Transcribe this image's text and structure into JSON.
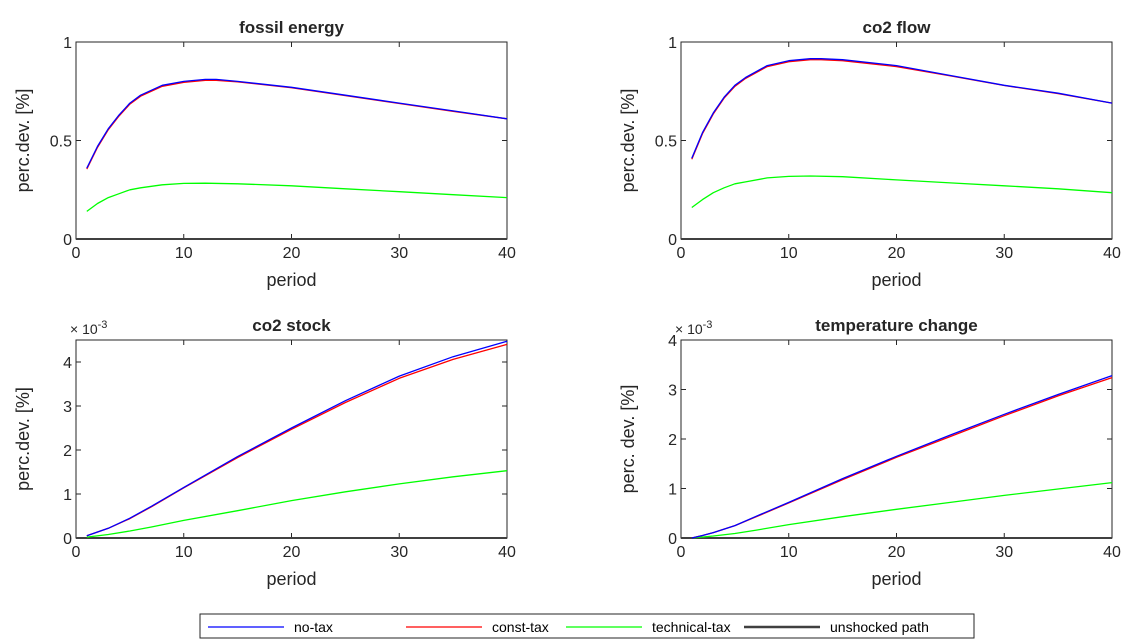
{
  "chart_data": [
    {
      "type": "line",
      "title": "fossil energy",
      "xlabel": "period",
      "ylabel": "perc.dev. [%]",
      "xlim": [
        0,
        40
      ],
      "ylim": [
        0,
        1
      ],
      "xticks": [
        "0",
        "10",
        "20",
        "30",
        "40"
      ],
      "yticks": [
        "0",
        "0.5",
        "1"
      ],
      "exponent": "",
      "grid": false,
      "series": [
        {
          "name": "no-tax",
          "color": "#0000ff",
          "x": [
            1,
            2,
            3,
            4,
            5,
            6,
            8,
            10,
            12,
            13,
            15,
            20,
            25,
            30,
            35,
            40
          ],
          "y": [
            0.36,
            0.47,
            0.56,
            0.63,
            0.69,
            0.73,
            0.78,
            0.8,
            0.81,
            0.81,
            0.8,
            0.77,
            0.73,
            0.69,
            0.65,
            0.61
          ]
        },
        {
          "name": "const-tax",
          "color": "#ff0000",
          "x": [
            1,
            2,
            3,
            4,
            5,
            6,
            8,
            10,
            12,
            13,
            15,
            20,
            25,
            30,
            35,
            40
          ],
          "y": [
            0.355,
            0.465,
            0.555,
            0.625,
            0.685,
            0.725,
            0.775,
            0.795,
            0.805,
            0.805,
            0.798,
            0.768,
            0.728,
            0.688,
            0.648,
            0.61
          ]
        },
        {
          "name": "technical-tax",
          "color": "#00ff00",
          "x": [
            1,
            2,
            3,
            4,
            5,
            6,
            8,
            10,
            12,
            15,
            20,
            25,
            30,
            35,
            40
          ],
          "y": [
            0.14,
            0.18,
            0.21,
            0.23,
            0.25,
            0.26,
            0.275,
            0.282,
            0.283,
            0.28,
            0.27,
            0.255,
            0.24,
            0.225,
            0.21
          ]
        },
        {
          "name": "unshocked path",
          "color": "#404040",
          "x": [
            0,
            40
          ],
          "y": [
            0,
            0
          ]
        }
      ]
    },
    {
      "type": "line",
      "title": "co2 flow",
      "xlabel": "period",
      "ylabel": "perc.dev. [%]",
      "xlim": [
        0,
        40
      ],
      "ylim": [
        0,
        1
      ],
      "xticks": [
        "0",
        "10",
        "20",
        "30",
        "40"
      ],
      "yticks": [
        "0",
        "0.5",
        "1"
      ],
      "exponent": "",
      "grid": false,
      "series": [
        {
          "name": "no-tax",
          "color": "#0000ff",
          "x": [
            1,
            2,
            3,
            4,
            5,
            6,
            8,
            10,
            12,
            13,
            15,
            20,
            25,
            30,
            35,
            40
          ],
          "y": [
            0.41,
            0.54,
            0.64,
            0.72,
            0.78,
            0.82,
            0.88,
            0.905,
            0.915,
            0.915,
            0.91,
            0.88,
            0.83,
            0.78,
            0.74,
            0.69
          ]
        },
        {
          "name": "const-tax",
          "color": "#ff0000",
          "x": [
            1,
            2,
            3,
            4,
            5,
            6,
            8,
            10,
            12,
            13,
            15,
            20,
            25,
            30,
            35,
            40
          ],
          "y": [
            0.405,
            0.535,
            0.635,
            0.715,
            0.775,
            0.815,
            0.875,
            0.9,
            0.91,
            0.91,
            0.905,
            0.875,
            0.828,
            0.779,
            0.738,
            0.69
          ]
        },
        {
          "name": "technical-tax",
          "color": "#00ff00",
          "x": [
            1,
            2,
            3,
            4,
            5,
            6,
            8,
            10,
            12,
            15,
            20,
            25,
            30,
            35,
            40
          ],
          "y": [
            0.16,
            0.2,
            0.235,
            0.26,
            0.28,
            0.29,
            0.31,
            0.318,
            0.32,
            0.316,
            0.3,
            0.285,
            0.27,
            0.255,
            0.235
          ]
        },
        {
          "name": "unshocked path",
          "color": "#404040",
          "x": [
            0,
            40
          ],
          "y": [
            0,
            0
          ]
        }
      ]
    },
    {
      "type": "line",
      "title": "co2 stock",
      "xlabel": "period",
      "ylabel": "perc.dev. [%]",
      "xlim": [
        0,
        40
      ],
      "ylim": [
        0,
        4.5
      ],
      "xticks": [
        "0",
        "10",
        "20",
        "30",
        "40"
      ],
      "yticks": [
        "0",
        "1",
        "2",
        "3",
        "4"
      ],
      "yticks_values": [
        0,
        1,
        2,
        3,
        4
      ],
      "exponent": "× 10",
      "exponent_power": "-3",
      "grid": false,
      "series": [
        {
          "name": "no-tax",
          "color": "#0000ff",
          "x": [
            1,
            3,
            5,
            7,
            10,
            15,
            20,
            25,
            30,
            35,
            40
          ],
          "y": [
            0.05,
            0.22,
            0.45,
            0.72,
            1.15,
            1.85,
            2.5,
            3.12,
            3.68,
            4.12,
            4.47
          ]
        },
        {
          "name": "const-tax",
          "color": "#ff0000",
          "x": [
            1,
            3,
            5,
            7,
            10,
            15,
            20,
            25,
            30,
            35,
            40
          ],
          "y": [
            0.05,
            0.22,
            0.44,
            0.71,
            1.14,
            1.83,
            2.47,
            3.08,
            3.63,
            4.06,
            4.4
          ]
        },
        {
          "name": "technical-tax",
          "color": "#00ff00",
          "x": [
            1,
            3,
            5,
            7,
            10,
            15,
            20,
            25,
            30,
            35,
            40
          ],
          "y": [
            0.02,
            0.08,
            0.16,
            0.25,
            0.4,
            0.62,
            0.85,
            1.05,
            1.23,
            1.39,
            1.53
          ]
        },
        {
          "name": "unshocked path",
          "color": "#404040",
          "x": [
            0,
            40
          ],
          "y": [
            0,
            0
          ]
        }
      ]
    },
    {
      "type": "line",
      "title": "temperature change",
      "xlabel": "period",
      "ylabel": "perc. dev. [%]",
      "xlim": [
        0,
        40
      ],
      "ylim": [
        0,
        4
      ],
      "xticks": [
        "0",
        "10",
        "20",
        "30",
        "40"
      ],
      "yticks": [
        "0",
        "1",
        "2",
        "3",
        "4"
      ],
      "yticks_values": [
        0,
        1,
        2,
        3,
        4
      ],
      "exponent": "× 10",
      "exponent_power": "-3",
      "grid": false,
      "series": [
        {
          "name": "no-tax",
          "color": "#0000ff",
          "x": [
            1,
            2,
            3,
            5,
            7,
            10,
            15,
            20,
            25,
            30,
            35,
            40
          ],
          "y": [
            0.0,
            0.05,
            0.11,
            0.25,
            0.44,
            0.72,
            1.2,
            1.65,
            2.08,
            2.5,
            2.9,
            3.28
          ]
        },
        {
          "name": "const-tax",
          "color": "#ff0000",
          "x": [
            1,
            2,
            3,
            5,
            7,
            10,
            15,
            20,
            25,
            30,
            35,
            40
          ],
          "y": [
            0.0,
            0.05,
            0.11,
            0.25,
            0.43,
            0.71,
            1.18,
            1.63,
            2.05,
            2.47,
            2.87,
            3.24
          ]
        },
        {
          "name": "technical-tax",
          "color": "#00ff00",
          "x": [
            1,
            3,
            5,
            7,
            10,
            15,
            20,
            25,
            30,
            35,
            40
          ],
          "y": [
            0.0,
            0.04,
            0.09,
            0.16,
            0.27,
            0.43,
            0.58,
            0.72,
            0.86,
            0.99,
            1.12
          ]
        },
        {
          "name": "unshocked path",
          "color": "#404040",
          "x": [
            0,
            40
          ],
          "y": [
            0,
            0
          ]
        }
      ]
    }
  ],
  "legend": {
    "placement": "bottom-center",
    "entries": [
      {
        "label": "no-tax",
        "color": "#0000ff"
      },
      {
        "label": "const-tax",
        "color": "#ff0000"
      },
      {
        "label": "technical-tax",
        "color": "#00ff00"
      },
      {
        "label": "unshocked path",
        "color": "#404040"
      }
    ]
  }
}
